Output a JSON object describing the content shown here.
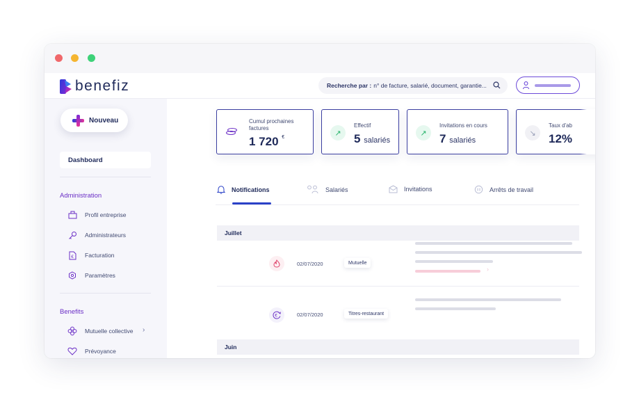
{
  "window": {
    "controls": [
      "close",
      "minimize",
      "maximize"
    ]
  },
  "header": {
    "brand": "benefiz",
    "search": {
      "label": "Recherche par :",
      "placeholder": "n° de facture, salarié, document, garantie..."
    }
  },
  "sidebar": {
    "new_button": "Nouveau",
    "dashboard": "Dashboard",
    "sections": [
      {
        "title": "Administration",
        "items": [
          {
            "label": "Profil entreprise",
            "icon": "building-icon"
          },
          {
            "label": "Administrateurs",
            "icon": "key-icon"
          },
          {
            "label": "Facturation",
            "icon": "invoice-icon"
          },
          {
            "label": "Paramètres",
            "icon": "settings-icon"
          }
        ]
      },
      {
        "title": "Benefits",
        "items": [
          {
            "label": "Mutuelle collective",
            "icon": "flower-icon",
            "chevron": true
          },
          {
            "label": "Prévoyance",
            "icon": "heart-icon"
          }
        ]
      }
    ]
  },
  "kpis": [
    {
      "label": "Cumul prochaines factures",
      "value": "1 720",
      "unit": "€",
      "icon": "coins-icon"
    },
    {
      "label": "Effectif",
      "value": "5",
      "unit": "salariés",
      "icon": "arrow-up-right-icon"
    },
    {
      "label": "Invitations en cours",
      "value": "7",
      "unit": "salariés",
      "icon": "arrow-up-right-icon"
    },
    {
      "label": "Taux d'ab",
      "value": "12%",
      "unit": "",
      "icon": "arrow-down-right-icon"
    }
  ],
  "tabs": [
    {
      "label": "Notifications",
      "icon": "bell-icon",
      "active": true
    },
    {
      "label": "Salariés",
      "icon": "people-icon"
    },
    {
      "label": "Invitations",
      "icon": "mail-icon"
    },
    {
      "label": "Arrêts de travail",
      "icon": "pause-icon"
    }
  ],
  "notifications": {
    "groups": [
      {
        "month": "Juillet",
        "items": [
          {
            "date": "02/07/2020",
            "tag": "Mutuelle",
            "icon": "flame-icon"
          },
          {
            "date": "02/07/2020",
            "tag": "Titres-restaurant",
            "icon": "euro-cycle-icon"
          }
        ]
      },
      {
        "month": "Juin",
        "items": []
      }
    ]
  },
  "colors": {
    "accent": "#2a41c7",
    "brand_purple": "#6b2fc6",
    "card_border": "#3a3ea0",
    "sidebar_bg": "#f6f6fb"
  }
}
